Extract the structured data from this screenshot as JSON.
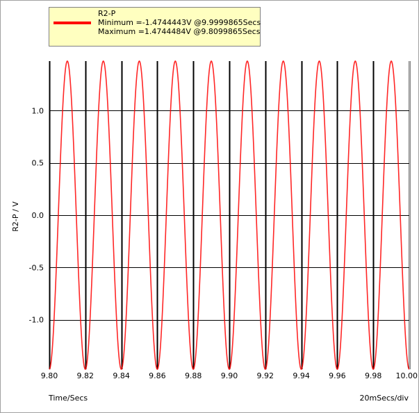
{
  "legend": {
    "series_name": "R2-P",
    "minimum_text": "Minimum =-1.4744443V @9.9999865Secs",
    "maximum_text": "Maximum =1.4744484V @9.8099865Secs",
    "swatch_color": "#ff0000"
  },
  "chart_data": {
    "type": "line",
    "title": "",
    "xlabel": "Time/Secs",
    "ylabel": "R2-P / V",
    "x_scale_note": "20mSecs/div",
    "xlim": [
      9.8,
      10.0
    ],
    "ylim": [
      -1.4744443,
      1.4744484
    ],
    "x_ticks": [
      "9.80",
      "9.82",
      "9.84",
      "9.86",
      "9.88",
      "9.90",
      "9.92",
      "9.94",
      "9.96",
      "9.98",
      "10.00"
    ],
    "y_ticks": [
      "1.0",
      "0.5",
      "0.0",
      "-0.5",
      "-1.0"
    ],
    "y_tick_values": [
      1.0,
      0.5,
      0.0,
      -0.5,
      -1.0
    ],
    "grid": true,
    "legend_position": "top-left",
    "series": [
      {
        "name": "R2-P",
        "color": "#ff0000",
        "waveform": "sine",
        "frequency_hz": 50,
        "amplitude_v": 1.4744484,
        "peak_time_s": 9.8099865
      }
    ]
  }
}
